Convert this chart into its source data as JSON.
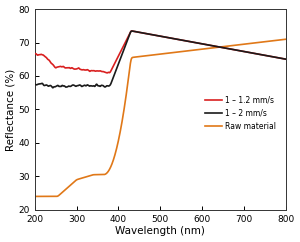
{
  "title": "",
  "xlabel": "Wavelength (nm)",
  "ylabel": "Reflectance (%)",
  "xlim": [
    200,
    800
  ],
  "ylim": [
    20,
    80
  ],
  "yticks": [
    20,
    30,
    40,
    50,
    60,
    70,
    80
  ],
  "xticks": [
    200,
    300,
    400,
    500,
    600,
    700,
    800
  ],
  "legend": [
    {
      "label": "1 – 1.2 mm/s",
      "color": "#d92020"
    },
    {
      "label": "1 – 2 mm/s",
      "color": "#1a1a1a"
    },
    {
      "label": "Raw material",
      "color": "#e07818"
    }
  ],
  "background_color": "#ffffff",
  "linewidth": 1.2
}
